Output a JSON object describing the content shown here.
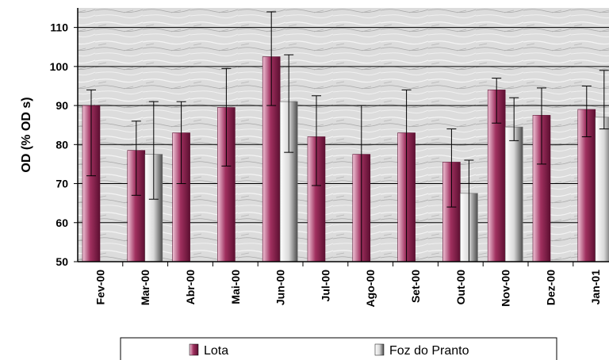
{
  "chart_data": {
    "type": "bar",
    "title": "",
    "xlabel": "",
    "ylabel": "OD (% OD  s)",
    "ylim": [
      50,
      115
    ],
    "yticks": [
      50,
      60,
      70,
      80,
      90,
      100,
      110
    ],
    "grid": true,
    "legend": "bottom",
    "categories": [
      "Fev-00",
      "Mar-00",
      "Abr-00",
      "Mai-00",
      "Jun-00",
      "Jul-00",
      "Ago-00",
      "Set-00",
      "Out-00",
      "Nov-00",
      "Dez-00",
      "Jan-01"
    ],
    "series": [
      {
        "name": "Lota",
        "color": "#a0305f",
        "values": [
          90,
          78.5,
          83,
          89.5,
          102.5,
          82,
          77.5,
          83,
          75.5,
          94,
          87.5,
          89
        ],
        "err_low": [
          72,
          67,
          70,
          74.5,
          90,
          69.5,
          50,
          50,
          64,
          85.5,
          75,
          82
        ],
        "err_high": [
          94,
          86,
          91,
          99.5,
          114,
          92.5,
          90,
          94,
          84,
          97,
          94.5,
          95
        ]
      },
      {
        "name": "Foz do Pranto",
        "color": "#999999",
        "values": [
          null,
          77.5,
          null,
          null,
          91,
          null,
          null,
          null,
          67.5,
          84.5,
          null,
          87
        ],
        "err_low": [
          null,
          66,
          null,
          null,
          78,
          null,
          null,
          null,
          50,
          81,
          null,
          84
        ],
        "err_high": [
          null,
          91,
          null,
          null,
          103,
          null,
          null,
          null,
          76,
          92,
          null,
          99
        ]
      }
    ]
  }
}
